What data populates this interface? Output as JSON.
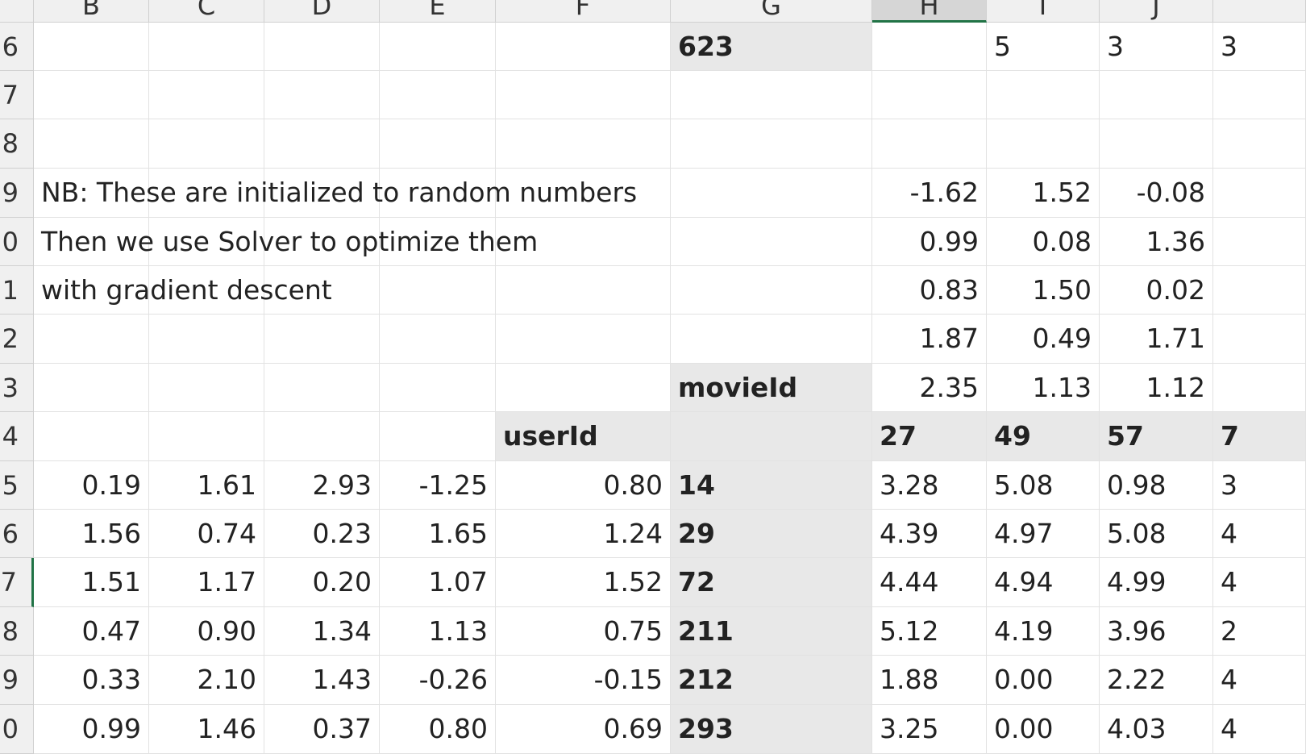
{
  "sheet": {
    "columns": [
      "B",
      "C",
      "D",
      "E",
      "F",
      "G",
      "H",
      "I",
      "J"
    ],
    "row_numbers": [
      "6",
      "7",
      "8",
      "9",
      "0",
      "1",
      "2",
      "3",
      "4",
      "5",
      "6",
      "7",
      "8",
      "9",
      "0"
    ],
    "rows": [
      [
        null,
        null,
        null,
        null,
        null,
        "623",
        null,
        "5",
        "3",
        "3"
      ],
      [
        null,
        null,
        null,
        null,
        null,
        null,
        null,
        null,
        null,
        null
      ],
      [
        null,
        null,
        null,
        null,
        null,
        null,
        null,
        null,
        null,
        null
      ],
      [
        "NB: These are initialized to random numbers",
        null,
        null,
        null,
        null,
        null,
        "-1.62",
        "1.52",
        "-0.08",
        null
      ],
      [
        "Then we use Solver to optimize them",
        null,
        null,
        null,
        null,
        null,
        "0.99",
        "0.08",
        "1.36",
        null
      ],
      [
        "with gradient descent",
        null,
        null,
        null,
        null,
        null,
        "0.83",
        "1.50",
        "0.02",
        null
      ],
      [
        null,
        null,
        null,
        null,
        null,
        null,
        "1.87",
        "0.49",
        "1.71",
        null
      ],
      [
        null,
        null,
        null,
        null,
        null,
        "movieId",
        "2.35",
        "1.13",
        "1.12",
        null
      ],
      [
        null,
        null,
        null,
        null,
        "userId",
        null,
        "27",
        "49",
        "57",
        "7"
      ],
      [
        "0.19",
        "1.61",
        "2.93",
        "-1.25",
        "0.80",
        "14",
        "3.28",
        "5.08",
        "0.98",
        "3"
      ],
      [
        "1.56",
        "0.74",
        "0.23",
        "1.65",
        "1.24",
        "29",
        "4.39",
        "4.97",
        "5.08",
        "4"
      ],
      [
        "1.51",
        "1.17",
        "0.20",
        "1.07",
        "1.52",
        "72",
        "4.44",
        "4.94",
        "4.99",
        "4"
      ],
      [
        "0.47",
        "0.90",
        "1.34",
        "1.13",
        "0.75",
        "211",
        "5.12",
        "4.19",
        "3.96",
        "2"
      ],
      [
        "0.33",
        "2.10",
        "1.43",
        "-0.26",
        "-0.15",
        "212",
        "1.88",
        "0.00",
        "2.22",
        "4"
      ],
      [
        "0.99",
        "1.46",
        "0.37",
        "0.80",
        "0.69",
        "293",
        "3.25",
        "0.00",
        "4.03",
        "4"
      ]
    ]
  }
}
